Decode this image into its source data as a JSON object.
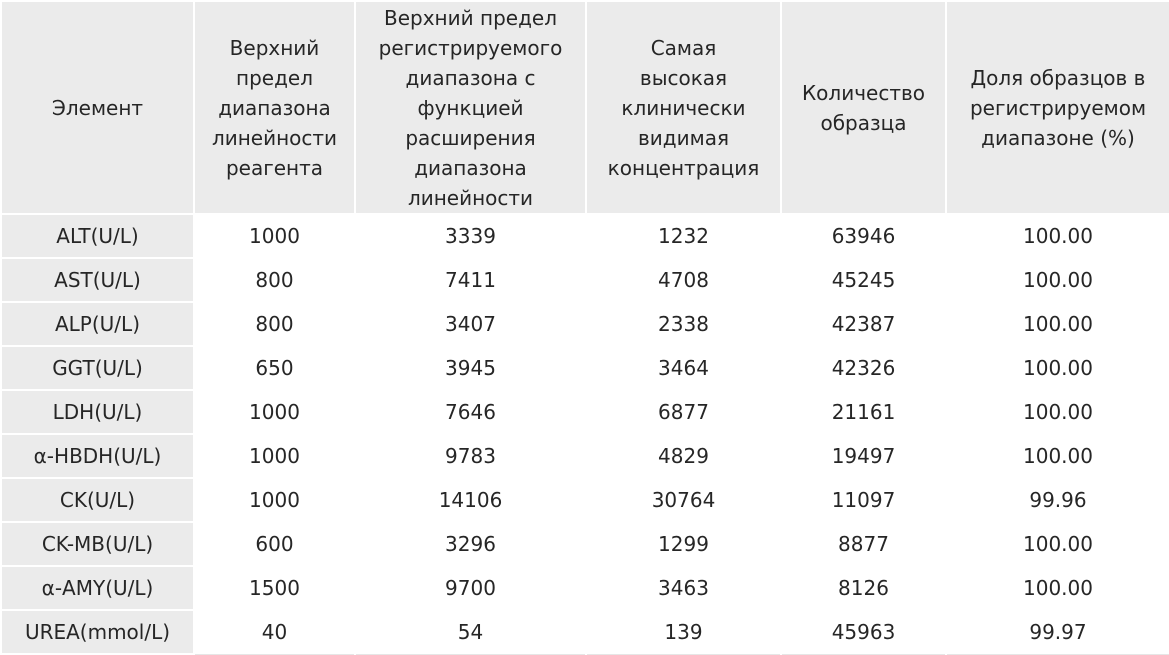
{
  "table": {
    "headers": [
      "Элемент",
      "Верхний\nпредел\nдиапазона\nлинейности\nреагента",
      "Верхний предел\nрегистрируемого\nдиапазона с\nфункцией\nрасширения\nдиапазона\nлинейности",
      "Самая\nвысокая\nклинически\nвидимая\nконцентрация",
      "Количество\nобразца",
      "Доля образцов в\nрегистрируемом\nдиапазоне (%)"
    ],
    "rows": [
      [
        "ALT(U/L)",
        "1000",
        "3339",
        "1232",
        "63946",
        "100.00"
      ],
      [
        "AST(U/L)",
        "800",
        "7411",
        "4708",
        "45245",
        "100.00"
      ],
      [
        "ALP(U/L)",
        "800",
        "3407",
        "2338",
        "42387",
        "100.00"
      ],
      [
        "GGT(U/L)",
        "650",
        "3945",
        "3464",
        "42326",
        "100.00"
      ],
      [
        "LDH(U/L)",
        "1000",
        "7646",
        "6877",
        "21161",
        "100.00"
      ],
      [
        "α-HBDH(U/L)",
        "1000",
        "9783",
        "4829",
        "19497",
        "100.00"
      ],
      [
        "CK(U/L)",
        "1000",
        "14106",
        "30764",
        "11097",
        "99.96"
      ],
      [
        "CK-MB(U/L)",
        "600",
        "3296",
        "1299",
        "8877",
        "100.00"
      ],
      [
        "α-AMY(U/L)",
        "1500",
        "9700",
        "3463",
        "8126",
        "100.00"
      ],
      [
        "UREA(mmol/L)",
        "40",
        "54",
        "139",
        "45963",
        "99.97"
      ]
    ]
  }
}
